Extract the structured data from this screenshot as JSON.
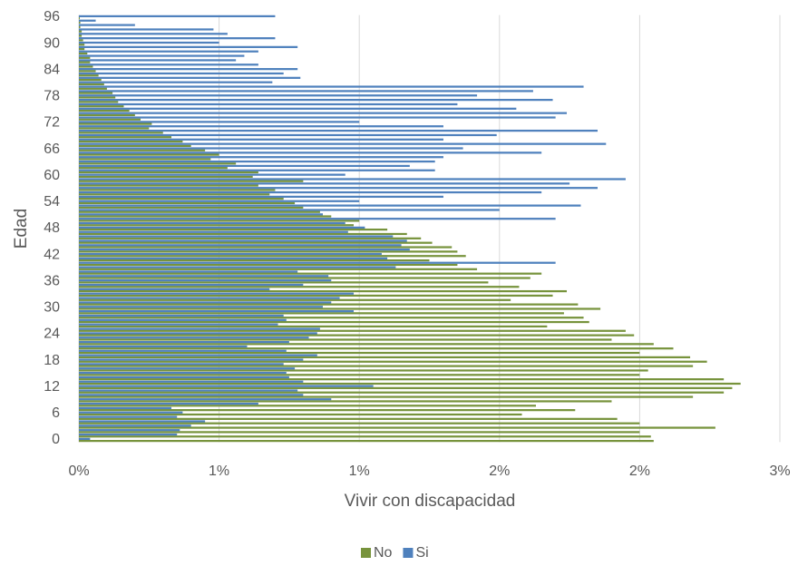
{
  "chart_data": {
    "type": "bar",
    "orientation": "horizontal",
    "x_label": "Vivir con discapacidad",
    "y_label": "Edad",
    "categories": [
      "0",
      null,
      null,
      null,
      null,
      null,
      "6",
      null,
      null,
      null,
      null,
      null,
      "12",
      null,
      null,
      null,
      null,
      null,
      "18",
      null,
      null,
      null,
      null,
      null,
      "24",
      null,
      null,
      null,
      null,
      null,
      "30",
      null,
      null,
      null,
      null,
      null,
      "36",
      null,
      null,
      null,
      null,
      null,
      "42",
      null,
      null,
      null,
      null,
      null,
      "48",
      null,
      null,
      null,
      null,
      null,
      "54",
      null,
      null,
      null,
      null,
      null,
      "60",
      null,
      null,
      null,
      null,
      null,
      "66",
      null,
      null,
      null,
      null,
      null,
      "72",
      null,
      null,
      null,
      null,
      null,
      "78",
      null,
      null,
      null,
      null,
      null,
      "84",
      null,
      null,
      null,
      null,
      null,
      "90",
      null,
      null,
      null,
      null,
      null,
      "96"
    ],
    "series": [
      {
        "name": "No",
        "color": "#77933c",
        "values": [
          2.05,
          2.04,
          2.0,
          2.27,
          2.0,
          1.92,
          1.58,
          1.77,
          1.63,
          1.9,
          2.19,
          2.3,
          2.33,
          2.36,
          2.3,
          2.0,
          2.03,
          2.19,
          2.24,
          2.18,
          2.0,
          2.12,
          2.05,
          1.9,
          1.98,
          1.95,
          1.67,
          1.82,
          1.8,
          1.73,
          1.86,
          1.78,
          1.54,
          1.69,
          1.74,
          1.57,
          1.46,
          1.61,
          1.65,
          1.42,
          1.35,
          1.25,
          1.38,
          1.35,
          1.33,
          1.26,
          1.22,
          1.17,
          1.1,
          0.98,
          1.0,
          0.9,
          0.86,
          0.8,
          0.77,
          0.73,
          0.68,
          0.7,
          0.64,
          0.8,
          0.62,
          0.64,
          0.53,
          0.56,
          0.47,
          0.5,
          0.45,
          0.4,
          0.37,
          0.33,
          0.3,
          0.25,
          0.26,
          0.22,
          0.2,
          0.18,
          0.16,
          0.14,
          0.13,
          0.12,
          0.1,
          0.09,
          0.08,
          0.07,
          0.06,
          0.05,
          0.04,
          0.04,
          0.03,
          0.02,
          0.02,
          0.015,
          0.01,
          0.01,
          0.005,
          0.005,
          0.003
        ]
      },
      {
        "name": "Si",
        "color": "#4f81bd",
        "values": [
          0.04,
          0.35,
          0.36,
          0.4,
          0.45,
          0.35,
          0.37,
          0.33,
          0.64,
          0.9,
          0.8,
          0.78,
          1.05,
          0.8,
          0.75,
          0.74,
          0.77,
          0.73,
          0.8,
          0.85,
          0.74,
          0.6,
          0.75,
          0.82,
          0.85,
          0.86,
          0.71,
          0.74,
          0.73,
          0.98,
          0.87,
          0.9,
          0.93,
          0.98,
          0.68,
          0.8,
          0.9,
          0.89,
          0.78,
          1.13,
          1.7,
          1.1,
          1.08,
          1.18,
          1.15,
          1.17,
          1.12,
          0.96,
          1.02,
          0.95,
          1.7,
          0.87,
          1.5,
          1.79,
          1.0,
          1.3,
          1.65,
          1.85,
          1.75,
          1.95,
          0.95,
          1.27,
          1.18,
          1.27,
          1.3,
          1.65,
          1.37,
          1.88,
          1.3,
          1.49,
          1.85,
          1.3,
          1.0,
          1.7,
          1.74,
          1.56,
          1.35,
          1.69,
          1.42,
          1.62,
          1.8,
          0.69,
          0.79,
          0.73,
          0.78,
          0.64,
          0.56,
          0.59,
          0.64,
          0.78,
          0.5,
          0.7,
          0.53,
          0.48,
          0.2,
          0.06,
          0.7
        ]
      }
    ],
    "xlim": [
      0,
      2.5
    ],
    "xticks": [
      {
        "value": 0,
        "label": "0%"
      },
      {
        "value": 0.5,
        "label": "1%"
      },
      {
        "value": 1,
        "label": "1%"
      },
      {
        "value": 1.5,
        "label": "2%"
      },
      {
        "value": 2,
        "label": "2%"
      },
      {
        "value": 2.5,
        "label": "3%"
      }
    ],
    "grid": true,
    "legend": "bottom"
  }
}
